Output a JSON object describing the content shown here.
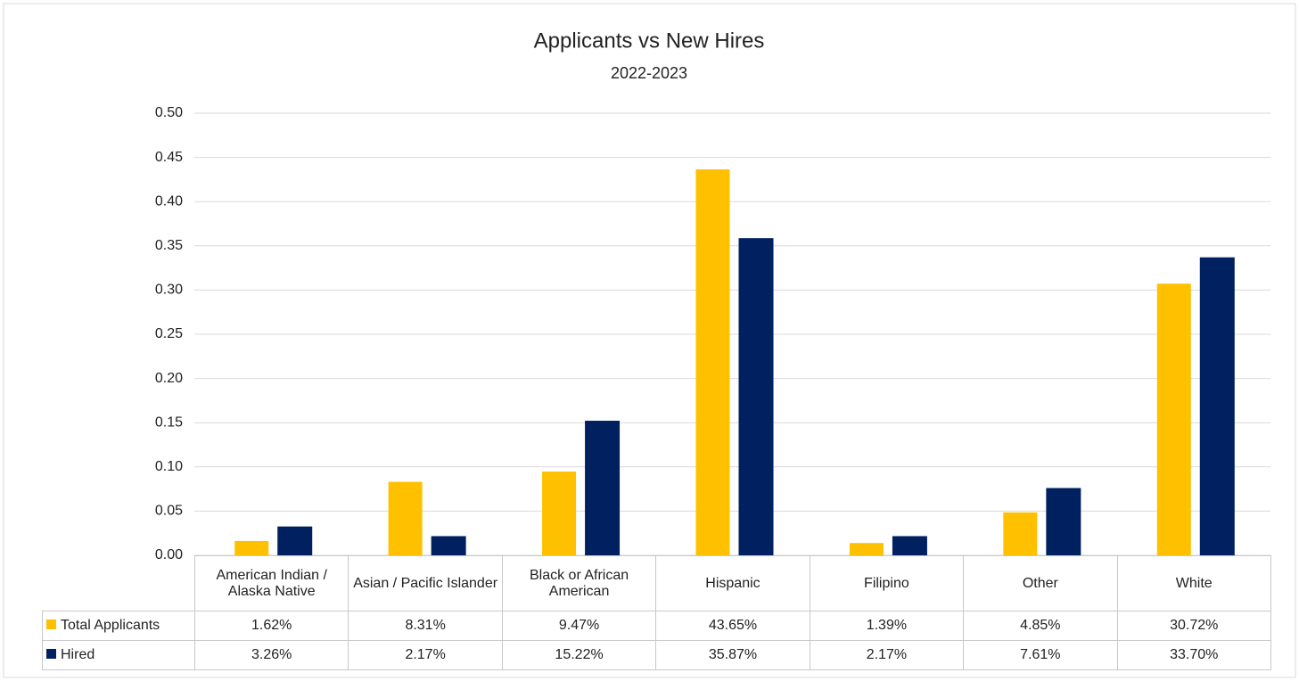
{
  "chart_data": {
    "type": "bar",
    "title": "Applicants vs New Hires",
    "subtitle": "2022-2023",
    "categories": [
      "American Indian / Alaska Native",
      "Asian / Pacific Islander",
      "Black or African American",
      "Hispanic",
      "Filipino",
      "Other",
      "White"
    ],
    "series": [
      {
        "name": "Total Applicants",
        "color": "#ffc000",
        "values": [
          0.0162,
          0.0831,
          0.0947,
          0.4365,
          0.0139,
          0.0485,
          0.3072
        ],
        "value_labels": [
          "1.62%",
          "8.31%",
          "9.47%",
          "43.65%",
          "1.39%",
          "4.85%",
          "30.72%"
        ]
      },
      {
        "name": "Hired",
        "color": "#002060",
        "values": [
          0.0326,
          0.0217,
          0.1522,
          0.3587,
          0.0217,
          0.0761,
          0.337
        ],
        "value_labels": [
          "3.26%",
          "2.17%",
          "15.22%",
          "35.87%",
          "2.17%",
          "7.61%",
          "33.70%"
        ]
      }
    ],
    "ylim": [
      0,
      0.5
    ],
    "yticks": [
      {
        "value": 0,
        "label": "0.00"
      },
      0.05,
      {
        "value": 0.1,
        "label": "0.10"
      },
      0.15,
      {
        "value": 0.2,
        "label": "0.20"
      },
      0.25,
      {
        "value": 0.3,
        "label": "0.30"
      },
      0.35,
      {
        "value": 0.4,
        "label": "0.40"
      },
      0.45,
      {
        "value": 0.5,
        "label": "0.50"
      }
    ],
    "grid": true
  }
}
